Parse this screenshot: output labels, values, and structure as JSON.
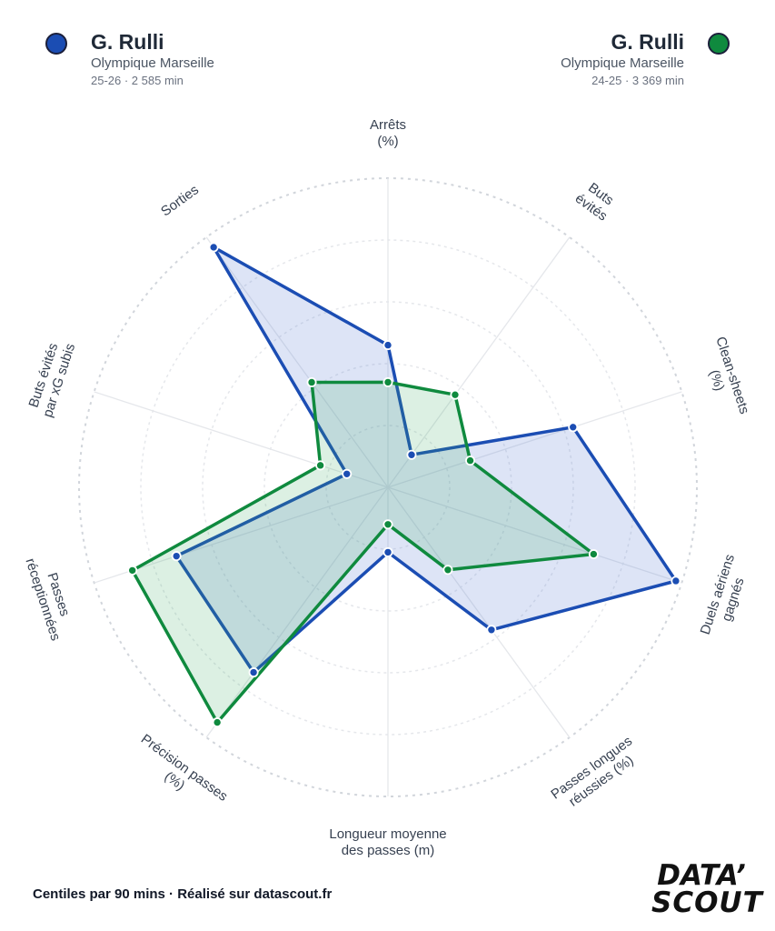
{
  "players": [
    {
      "name": "G. Rulli",
      "club": "Olympique Marseille",
      "meta": "25-26 · 2 585 min",
      "color": "#1b4db3"
    },
    {
      "name": "G. Rulli",
      "club": "Olympique Marseille",
      "meta": "24-25 · 3 369 min",
      "color": "#0f8a3e"
    }
  ],
  "footer": "Centiles par 90 mins · Réalisé sur datascout.fr",
  "logo": {
    "line1": "DATA’",
    "line2": "SCOUT"
  },
  "chart_data": {
    "type": "radar",
    "title": "",
    "range": [
      0,
      100
    ],
    "grid": true,
    "axes": [
      {
        "label": [
          "Arrêts",
          "(%)"
        ]
      },
      {
        "label": [
          "Buts",
          "évités"
        ]
      },
      {
        "label": [
          "Clean-sheets",
          "(%)"
        ]
      },
      {
        "label": [
          "Duels aériens",
          "gagnés"
        ]
      },
      {
        "label": [
          "Passes longues",
          "réussies (%)"
        ]
      },
      {
        "label": [
          "Longueur moyenne",
          "des passes (m)"
        ]
      },
      {
        "label": [
          "Précision passes",
          "(%)"
        ]
      },
      {
        "label": [
          "Passes",
          "réceptionnées"
        ]
      },
      {
        "label": [
          "Buts évités",
          "par xG subis"
        ]
      },
      {
        "label": [
          "Sorties"
        ]
      }
    ],
    "series": [
      {
        "name": "G. Rulli",
        "season": "25-26",
        "color": "#1b4db3",
        "fill": "rgba(100,130,215,0.22)",
        "values": [
          46,
          13,
          63,
          98,
          57,
          21,
          74,
          72,
          14,
          96
        ]
      },
      {
        "name": "G. Rulli",
        "season": "24-25",
        "color": "#0f8a3e",
        "fill": "rgba(60,170,100,0.18)",
        "values": [
          34,
          37,
          28,
          70,
          33,
          12,
          94,
          87,
          23,
          42
        ]
      }
    ]
  }
}
